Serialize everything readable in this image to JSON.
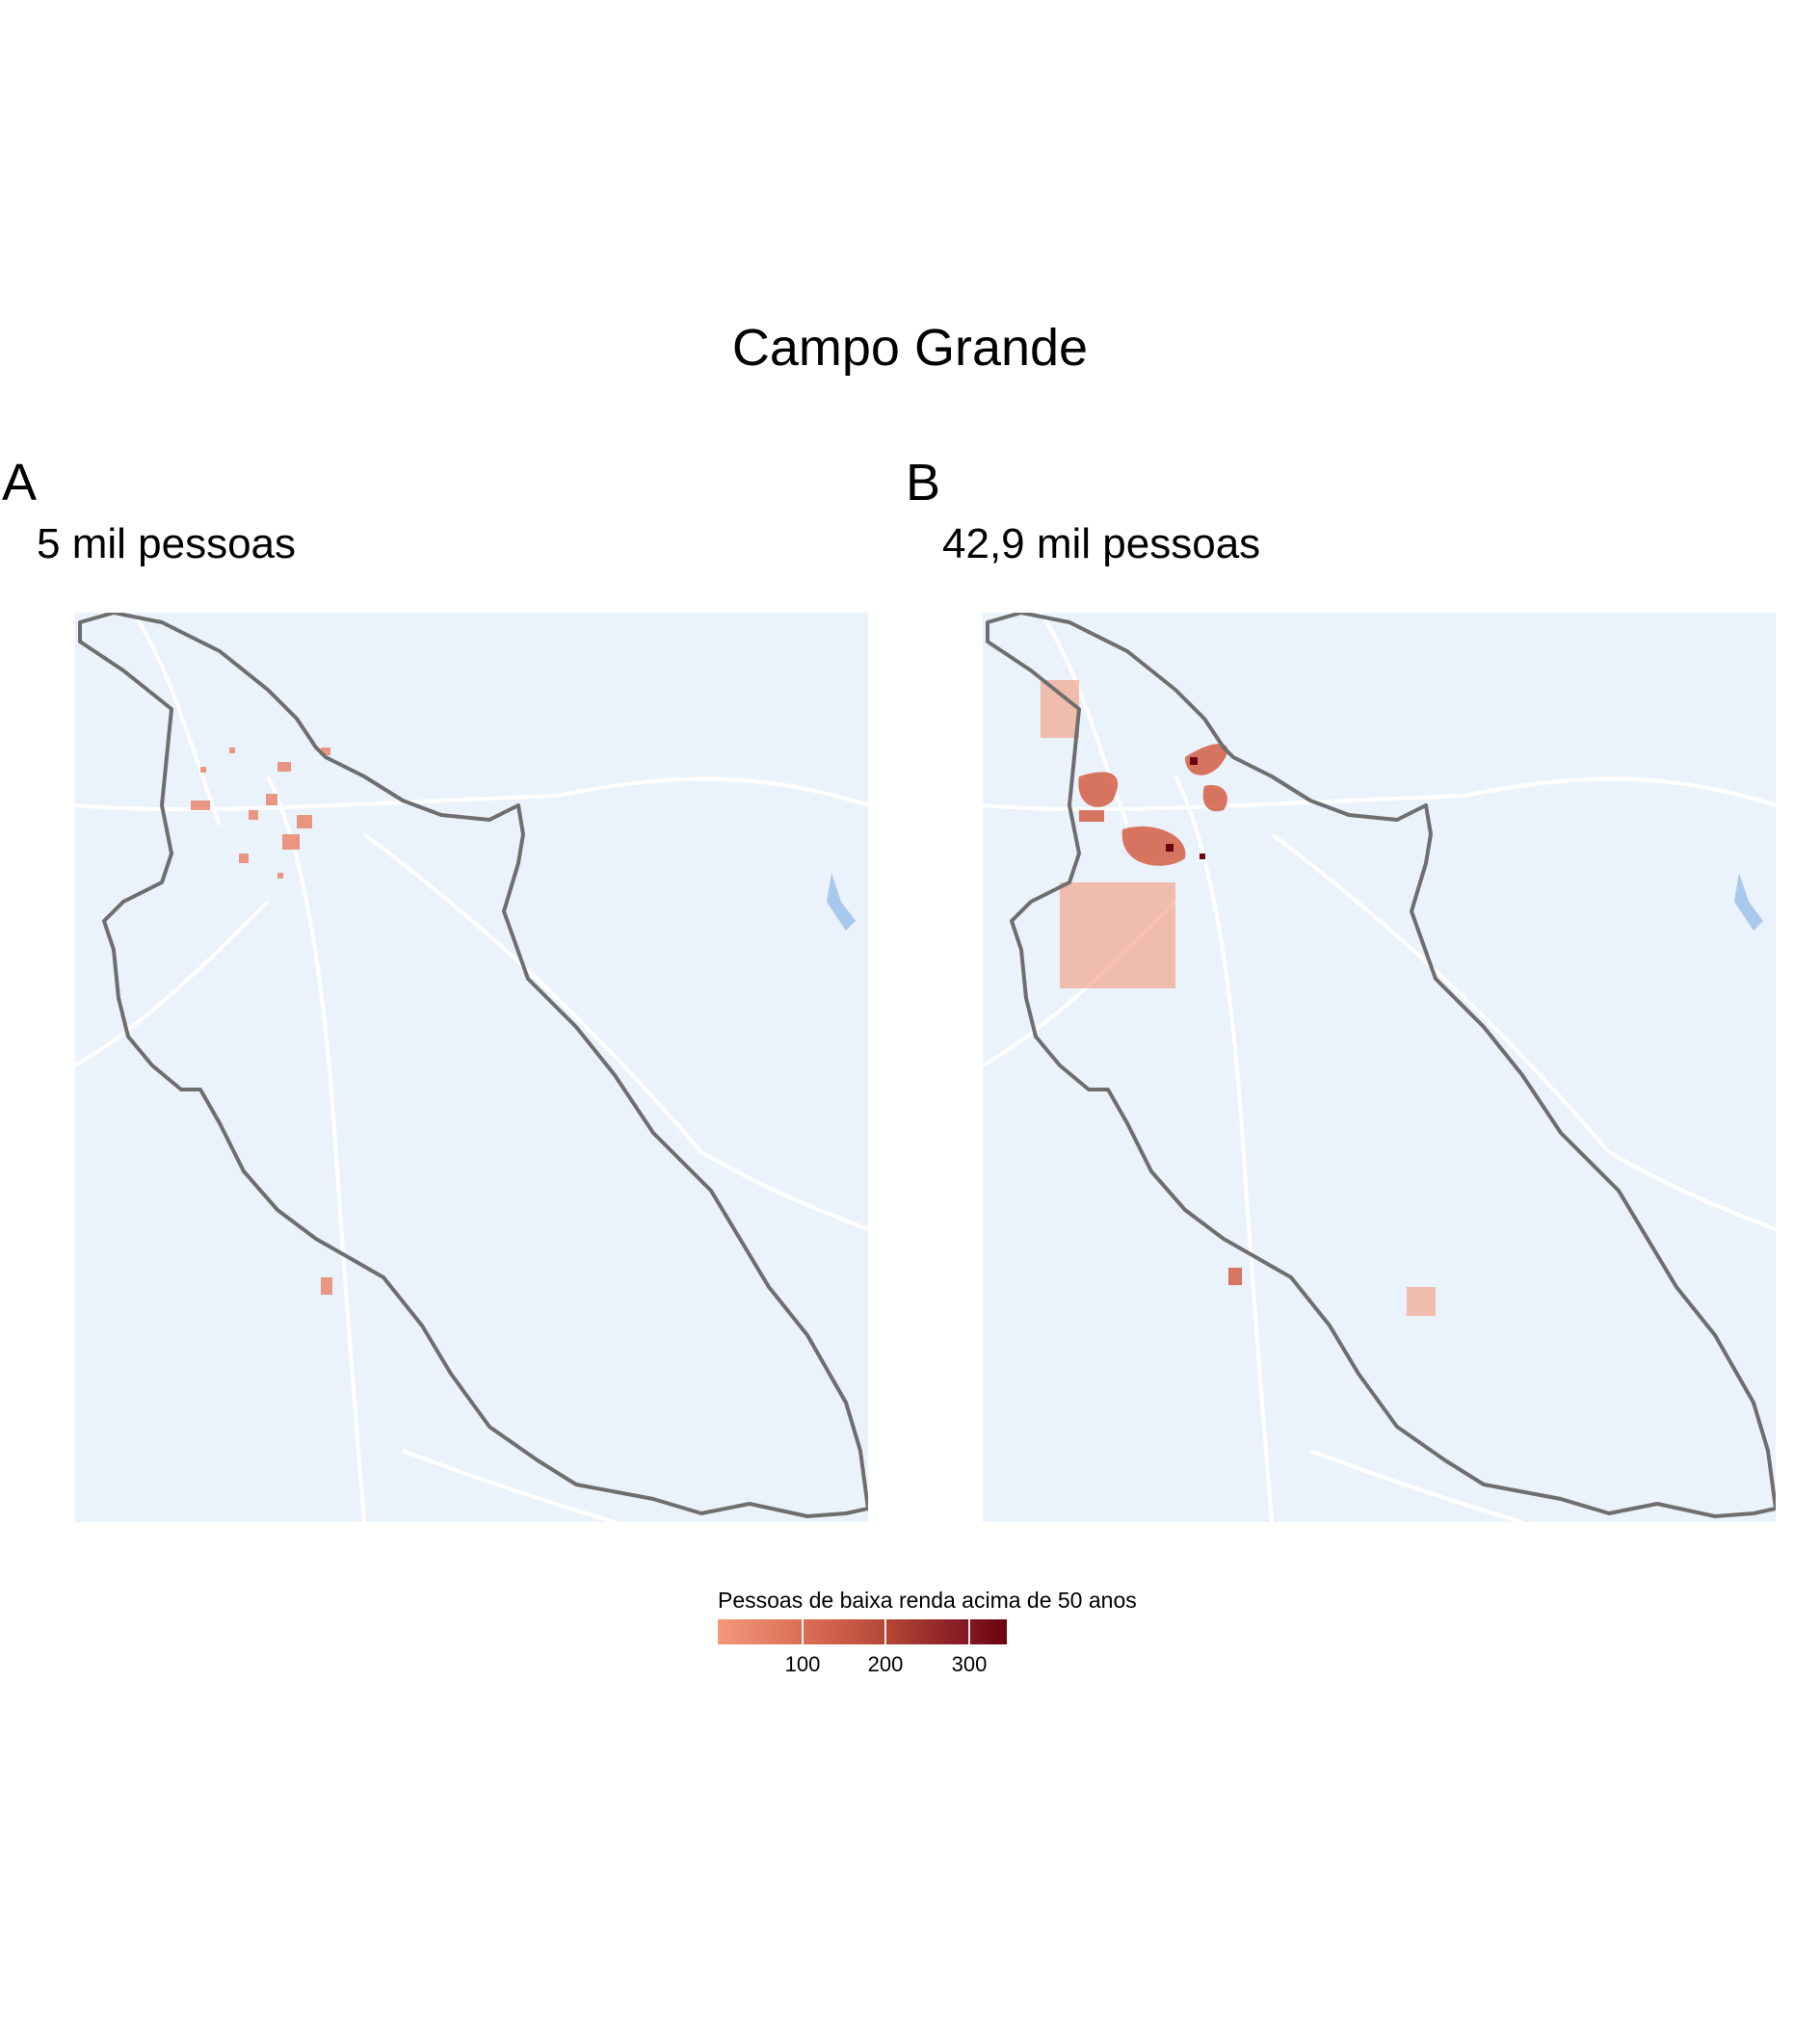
{
  "figure": {
    "title": "Campo Grande"
  },
  "panels": [
    {
      "letter": "A",
      "subtitle": "5 mil pessoas"
    },
    {
      "letter": "B",
      "subtitle": "42,9 mil pessoas"
    }
  ],
  "legend": {
    "title": "Pessoas de baixa renda acima de 50 anos",
    "ticks": [
      "100",
      "200",
      "300"
    ],
    "colors": {
      "low": "#f4977a",
      "high": "#6b0210"
    }
  },
  "colors": {
    "background": "#eaf2fb",
    "boundary": "#6e6e6e",
    "roads": "#ffffff",
    "water": "#a9c9ec"
  }
}
